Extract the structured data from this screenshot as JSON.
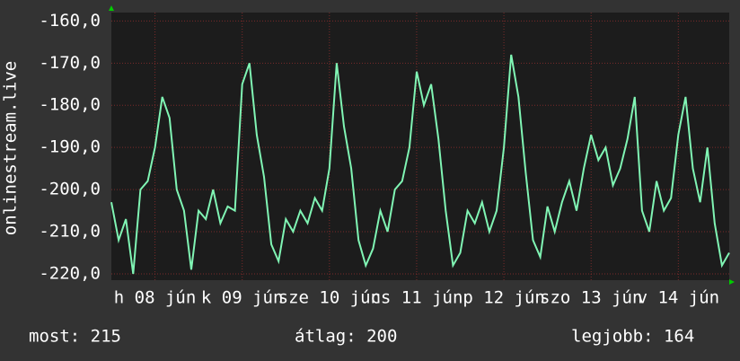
{
  "chart_data": {
    "type": "line",
    "y_label": "onlinestream.live",
    "x": [
      0,
      2,
      4,
      6,
      8,
      10,
      12,
      14,
      16,
      18,
      20,
      22,
      24,
      26,
      28,
      30,
      32,
      34,
      36,
      38,
      40,
      42,
      44,
      46,
      48,
      50,
      52,
      54,
      56,
      58,
      60,
      62,
      64,
      66,
      68,
      70,
      72,
      74,
      76,
      78,
      80,
      82,
      84,
      86,
      88,
      90,
      92,
      94,
      96,
      98,
      100,
      102,
      104,
      106,
      108,
      110,
      112,
      114,
      116,
      118,
      120,
      122,
      124,
      126,
      128,
      130,
      132,
      134,
      136,
      138,
      140,
      142,
      144,
      146,
      148,
      150,
      152,
      154,
      156,
      158,
      160,
      162,
      164,
      166,
      168,
      170
    ],
    "series": [
      {
        "name": "onlinestream.live",
        "color": "#80f5b4",
        "values": [
          -203,
          -212,
          -207,
          -220,
          -200,
          -198,
          -190,
          -178,
          -183,
          -200,
          -205,
          -219,
          -205,
          -207,
          -200,
          -208,
          -204,
          -205,
          -175,
          -170,
          -187,
          -197,
          -213,
          -217,
          -207,
          -210,
          -205,
          -208,
          -202,
          -205,
          -195,
          -170,
          -185,
          -195,
          -212,
          -218,
          -214,
          -205,
          -210,
          -200,
          -198,
          -190,
          -172,
          -180,
          -175,
          -188,
          -205,
          -218,
          -215,
          -205,
          -208,
          -203,
          -210,
          -205,
          -190,
          -168,
          -178,
          -196,
          -212,
          -216,
          -204,
          -210,
          -203,
          -198,
          -205,
          -195,
          -187,
          -193,
          -190,
          -199,
          -195,
          -188,
          -178,
          -205,
          -210,
          -198,
          -205,
          -202,
          -187,
          -178,
          -195,
          -203,
          -190,
          -208,
          -218,
          -215
        ]
      }
    ],
    "xlim": [
      0,
      170
    ],
    "xticks": [
      {
        "value": 12,
        "label": "h 08 jún"
      },
      {
        "value": 36,
        "label": "k 09 jún"
      },
      {
        "value": 60,
        "label": "sze 10 jún"
      },
      {
        "value": 84,
        "label": "cs 11 jún"
      },
      {
        "value": 108,
        "label": "p 12 jún"
      },
      {
        "value": 132,
        "label": "szo 13 jún"
      },
      {
        "value": 156,
        "label": "v 14 jún"
      }
    ],
    "ylim": [
      -221.5,
      -158
    ],
    "yticks": [
      {
        "value": -160,
        "label": "-160,0"
      },
      {
        "value": -170,
        "label": "-170,0"
      },
      {
        "value": -180,
        "label": "-180,0"
      },
      {
        "value": -190,
        "label": "-190,0"
      },
      {
        "value": -200,
        "label": "-200,0"
      },
      {
        "value": -210,
        "label": "-210,0"
      },
      {
        "value": -220,
        "label": "-220,0"
      }
    ],
    "grid": true,
    "footer": [
      "most: 215",
      "átlag: 200",
      "legjobb: 164"
    ]
  }
}
